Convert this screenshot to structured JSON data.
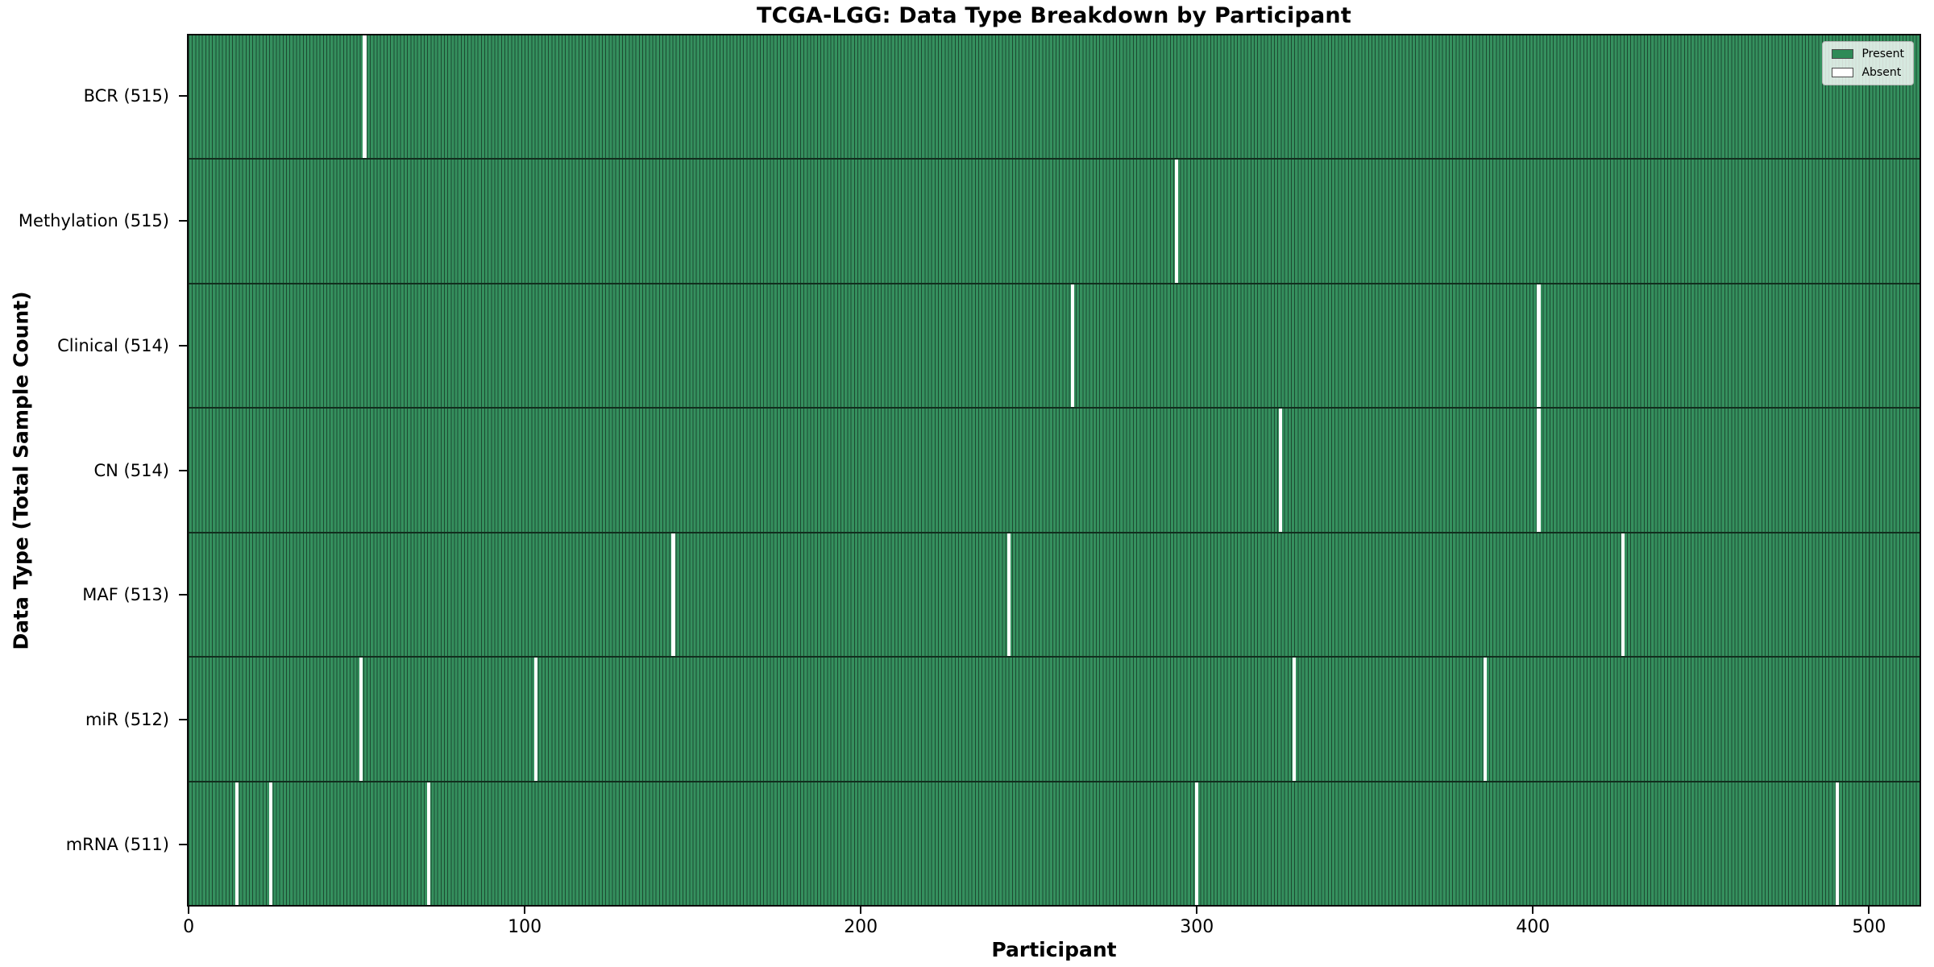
{
  "title": "TCGA-LGG: Data Type Breakdown by Participant",
  "colors": {
    "present": "#2e8b57",
    "bar_fill": "#35905e",
    "bar_edge": "#1c4a31",
    "row_separator": "#122e1e",
    "absent": "#ffffff"
  },
  "legend": {
    "present_label": "Present",
    "absent_label": "Absent"
  },
  "chart_data": {
    "type": "heatmap",
    "title": "TCGA-LGG: Data Type Breakdown by Participant",
    "xlabel": "Participant",
    "ylabel": "Data Type (Total Sample Count)",
    "n_participants": 516,
    "x_ticks": [
      0,
      100,
      200,
      300,
      400,
      500
    ],
    "xlim": [
      0,
      516
    ],
    "grid": false,
    "legend_position": "upper right",
    "legend_entries": [
      {
        "label": "Present",
        "color": "#2e8b57"
      },
      {
        "label": "Absent",
        "color": "#ffffff"
      }
    ],
    "rows": [
      {
        "label": "BCR (515)",
        "total": 515,
        "absent_participants": [
          52
        ]
      },
      {
        "label": "Methylation (515)",
        "total": 515,
        "absent_participants": [
          294
        ]
      },
      {
        "label": "Clinical (514)",
        "total": 514,
        "absent_participants": [
          263,
          402
        ]
      },
      {
        "label": "CN (514)",
        "total": 514,
        "absent_participants": [
          325,
          402
        ]
      },
      {
        "label": "MAF (513)",
        "total": 513,
        "absent_participants": [
          144,
          244,
          427
        ]
      },
      {
        "label": "miR (512)",
        "total": 512,
        "absent_participants": [
          51,
          103,
          329,
          386
        ]
      },
      {
        "label": "mRNA (511)",
        "total": 511,
        "absent_participants": [
          14,
          24,
          71,
          300,
          491
        ]
      }
    ]
  }
}
